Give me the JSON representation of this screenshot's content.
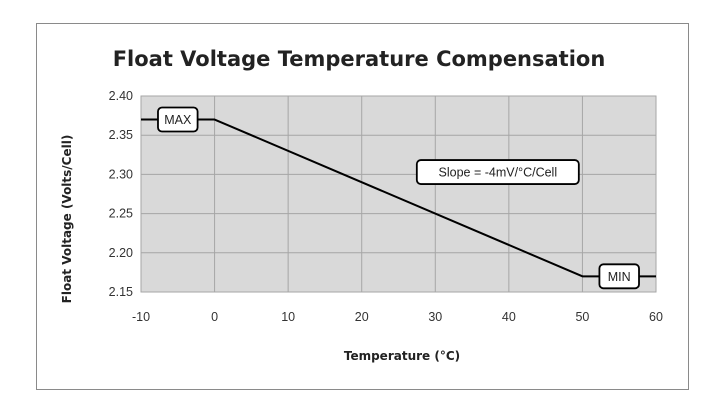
{
  "chart_data": {
    "type": "line",
    "title": "Float Voltage Temperature Compensation",
    "xlabel": "Temperature (°C)",
    "ylabel": "Float Voltage (Volts/Cell)",
    "xlim": [
      -10,
      60
    ],
    "ylim": [
      2.15,
      2.4
    ],
    "x_ticks": [
      "-10",
      "0",
      "10",
      "20",
      "30",
      "40",
      "50",
      "60"
    ],
    "y_ticks": [
      "2.40",
      "2.35",
      "2.30",
      "2.25",
      "2.20",
      "2.15"
    ],
    "grid": true,
    "series": [
      {
        "x": [
          -10,
          0,
          50,
          60
        ],
        "y": [
          2.37,
          2.37,
          2.17,
          2.17
        ]
      }
    ],
    "annotations": [
      {
        "text": "MAX",
        "x": -5,
        "y": 2.37
      },
      {
        "text": "MIN",
        "x": 55,
        "y": 2.17
      },
      {
        "text": "Slope = -4mV/°C/Cell",
        "x": 38.5,
        "y": 2.303
      }
    ],
    "colors": {
      "plot_background": "#d9d9d9",
      "grid": "#a6a6a6",
      "line": "#000000"
    }
  }
}
